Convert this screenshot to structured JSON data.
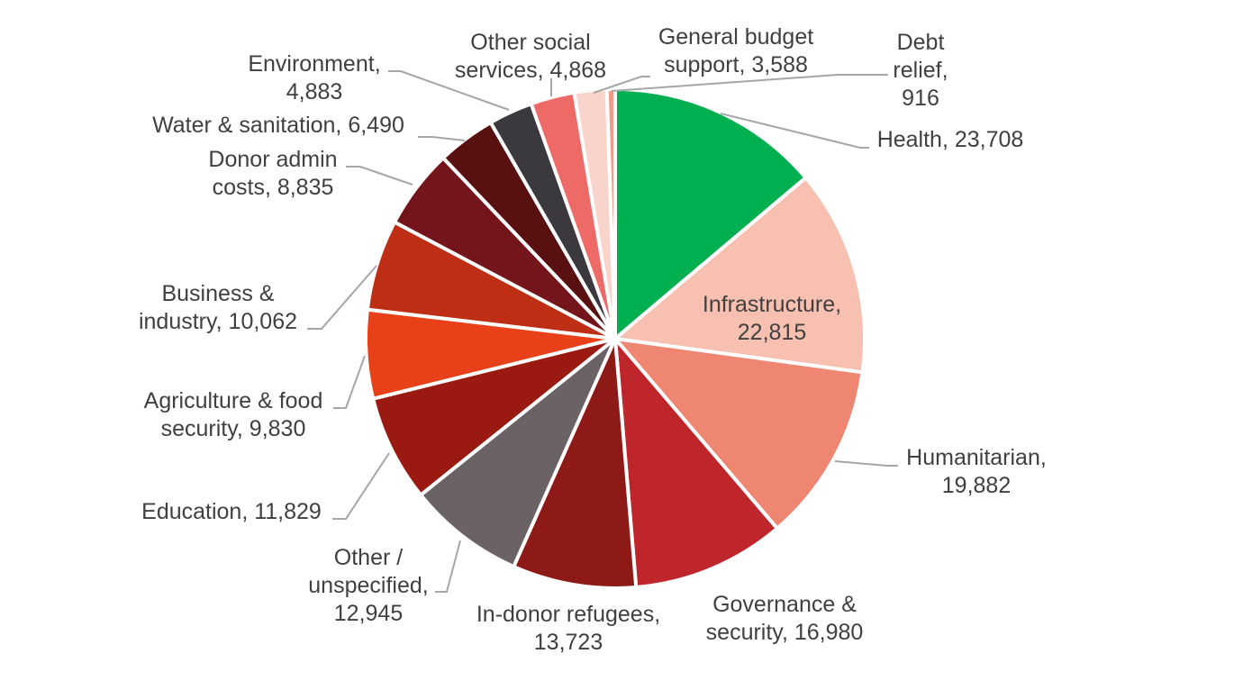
{
  "chart_data": {
    "type": "pie",
    "title": "",
    "start": "12 o'clock",
    "direction": "clockwise",
    "slices": [
      {
        "name": "Health",
        "value": 23708,
        "value_label": "23,708",
        "color": "#00b050"
      },
      {
        "name": "Infrastructure",
        "value": 22815,
        "value_label": "22,815",
        "color": "#f8c0b0"
      },
      {
        "name": "Humanitarian",
        "value": 19882,
        "value_label": "19,882",
        "color": "#ef8672"
      },
      {
        "name": "Governance & security",
        "value": 16980,
        "value_label": "16,980",
        "color": "#be262b"
      },
      {
        "name": "In-donor refugees",
        "value": 13723,
        "value_label": "13,723",
        "color": "#8e1a17"
      },
      {
        "name": "Other / unspecified",
        "value": 12945,
        "value_label": "12,945",
        "color": "#6a6265"
      },
      {
        "name": "Education",
        "value": 11829,
        "value_label": "11,829",
        "color": "#9a1a12"
      },
      {
        "name": "Agriculture & food security",
        "value": 9830,
        "value_label": "9,830",
        "color": "#e84019"
      },
      {
        "name": "Business & industry",
        "value": 10062,
        "value_label": "10,062",
        "color": "#be2e15"
      },
      {
        "name": "Donor admin costs",
        "value": 8835,
        "value_label": "8,835",
        "color": "#73151b"
      },
      {
        "name": "Water & sanitation",
        "value": 6490,
        "value_label": "6,490",
        "color": "#581010"
      },
      {
        "name": "Environment",
        "value": 4883,
        "value_label": "4,883",
        "color": "#3b393d"
      },
      {
        "name": "Other social services",
        "value": 4868,
        "value_label": "4,868",
        "color": "#ee6a66"
      },
      {
        "name": "General budget support",
        "value": 3588,
        "value_label": "3,588",
        "color": "#f9d4cc"
      },
      {
        "name": "Debt relief",
        "value": 916,
        "value_label": "916",
        "color": "#f29a8a"
      }
    ],
    "labels": [
      {
        "lines": [
          "Health, 23,708"
        ]
      },
      {
        "lines": [
          "Infrastructure,",
          "22,815"
        ]
      },
      {
        "lines": [
          "Humanitarian,",
          "19,882"
        ]
      },
      {
        "lines": [
          "Governance &",
          "security, 16,980"
        ]
      },
      {
        "lines": [
          "In-donor refugees,",
          "13,723"
        ]
      },
      {
        "lines": [
          "Other /",
          "unspecified,",
          "12,945"
        ]
      },
      {
        "lines": [
          "Education, 11,829"
        ]
      },
      {
        "lines": [
          "Agriculture & food",
          "security, 9,830"
        ]
      },
      {
        "lines": [
          "Business &",
          "industry, 10,062"
        ]
      },
      {
        "lines": [
          "Donor admin",
          "costs, 8,835"
        ]
      },
      {
        "lines": [
          "Water & sanitation, 6,490"
        ]
      },
      {
        "lines": [
          "Environment,",
          "4,883"
        ]
      },
      {
        "lines": [
          "Other social",
          "services, 4,868"
        ]
      },
      {
        "lines": [
          "General budget",
          "support, 3,588"
        ]
      },
      {
        "lines": [
          "Debt",
          "relief,",
          "916"
        ]
      }
    ]
  }
}
